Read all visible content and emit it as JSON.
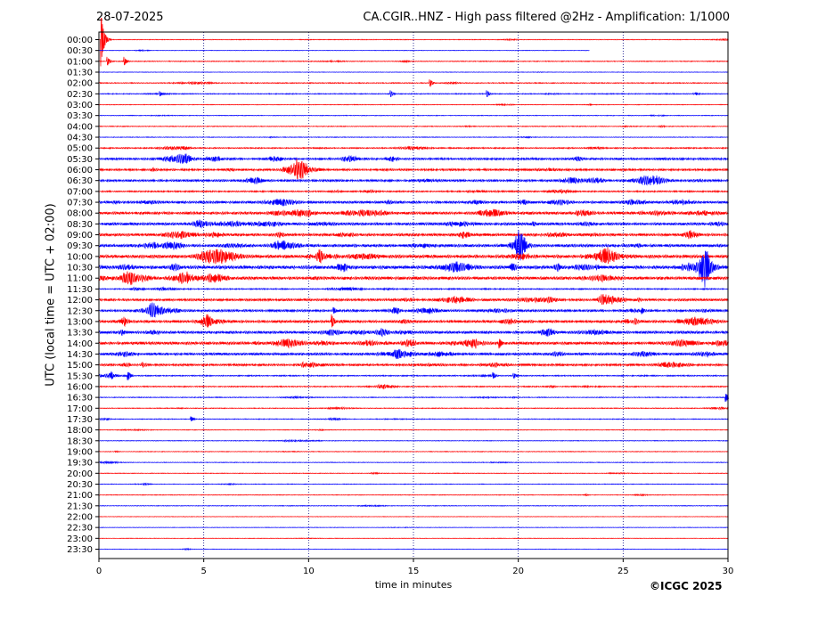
{
  "header": {
    "date": "28-07-2025",
    "title": "CA.CGIR..HNZ - High pass filtered @2Hz - Amplification: 1/1000"
  },
  "footer": {
    "copyright": "©ICGC 2025"
  },
  "chart_data": {
    "type": "line",
    "title": "CA.CGIR..HNZ - High pass filtered @2Hz - Amplification: 1/1000",
    "xlabel": "time in minutes",
    "ylabel": "UTC (local time = UTC + 02:00)",
    "xlim": [
      0,
      30
    ],
    "x_ticks": [
      0,
      5,
      10,
      15,
      20,
      25,
      30
    ],
    "x_grid": "dotted vertical lines at 5, 10, 15, 20, 25",
    "colors": {
      "even_rows": "#ff0000",
      "odd_rows": "#0000ff"
    },
    "rows": [
      "00:00",
      "00:30",
      "01:00",
      "01:30",
      "02:00",
      "02:30",
      "03:00",
      "03:30",
      "04:00",
      "04:30",
      "05:00",
      "05:30",
      "06:00",
      "06:30",
      "07:00",
      "07:30",
      "08:00",
      "08:30",
      "09:00",
      "09:30",
      "10:00",
      "10:30",
      "11:00",
      "11:30",
      "12:00",
      "12:30",
      "13:00",
      "13:30",
      "14:00",
      "14:30",
      "15:00",
      "15:30",
      "16:00",
      "16:30",
      "17:00",
      "17:30",
      "18:00",
      "18:30",
      "19:00",
      "19:30",
      "20:00",
      "20:30",
      "21:00",
      "21:30",
      "22:00",
      "22:30",
      "23:00",
      "23:30"
    ],
    "noise_level": [
      0.4,
      0.3,
      0.5,
      0.3,
      0.6,
      0.6,
      0.4,
      0.4,
      0.5,
      0.4,
      0.8,
      1.3,
      1.2,
      1.3,
      0.9,
      1.5,
      1.6,
      1.6,
      1.6,
      1.7,
      1.9,
      2.0,
      1.8,
      0.8,
      1.4,
      1.4,
      1.6,
      1.6,
      1.7,
      1.5,
      1.3,
      0.7,
      0.7,
      0.5,
      0.5,
      0.5,
      0.4,
      0.4,
      0.4,
      0.4,
      0.4,
      0.4,
      0.4,
      0.4,
      0.3,
      0.3,
      0.3,
      0.3
    ],
    "trace_end_minutes": {
      "00:30": 23.4
    },
    "events": [
      {
        "row": "00:00",
        "x": 0.1,
        "amp": 30
      },
      {
        "row": "01:00",
        "x": 0.4,
        "amp": 5
      },
      {
        "row": "01:00",
        "x": 1.2,
        "amp": 5
      },
      {
        "row": "02:30",
        "x": 2.9,
        "amp": 3
      },
      {
        "row": "02:30",
        "x": 13.9,
        "amp": 4
      },
      {
        "row": "02:30",
        "x": 18.5,
        "amp": 4
      },
      {
        "row": "02:00",
        "x": 15.8,
        "amp": 4
      },
      {
        "row": "12:30",
        "x": 11.2,
        "amp": 4
      },
      {
        "row": "13:00",
        "x": 11.1,
        "amp": 8
      },
      {
        "row": "15:30",
        "x": 1.4,
        "amp": 5
      },
      {
        "row": "15:30",
        "x": 18.8,
        "amp": 4
      },
      {
        "row": "15:30",
        "x": 19.8,
        "amp": 3
      },
      {
        "row": "14:00",
        "x": 19.1,
        "amp": 6
      },
      {
        "row": "10:30",
        "x": 21.9,
        "amp": 5
      },
      {
        "row": "16:30",
        "x": 29.9,
        "amp": 5
      },
      {
        "row": "12:30",
        "x": 25.9,
        "amp": 4
      },
      {
        "row": "17:30",
        "x": 4.4,
        "amp": 3
      }
    ]
  }
}
